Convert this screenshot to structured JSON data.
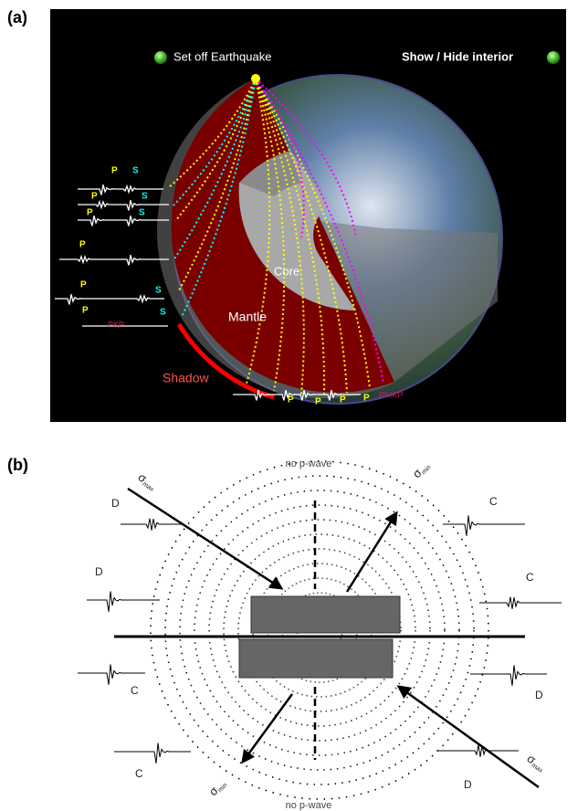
{
  "panel_a": {
    "label": "(a)",
    "buttons": [
      "Set off Earthquake",
      "Show / Hide interior"
    ],
    "regions": {
      "core": "Core",
      "mantle": "Mantle",
      "shadow": "Shadow"
    },
    "phases": [
      "PKP",
      "PKIKP"
    ],
    "wave_labels": [
      "P",
      "S",
      "P",
      "S",
      "P",
      "S",
      "P",
      "P",
      "S",
      "P",
      "S",
      "P",
      "P",
      "P",
      "P"
    ]
  },
  "panel_b": {
    "label": "(b)",
    "notes": [
      "no p-wave",
      "no p-wave"
    ],
    "stress": [
      {
        "symbol": "σ",
        "sub": "max"
      },
      {
        "symbol": "σ",
        "sub": "min"
      },
      {
        "symbol": "σ",
        "sub": "min"
      },
      {
        "symbol": "σ",
        "sub": "max"
      }
    ],
    "quadrants": [
      "D",
      "C",
      "D",
      "C",
      "C",
      "D",
      "C",
      "D"
    ]
  }
}
